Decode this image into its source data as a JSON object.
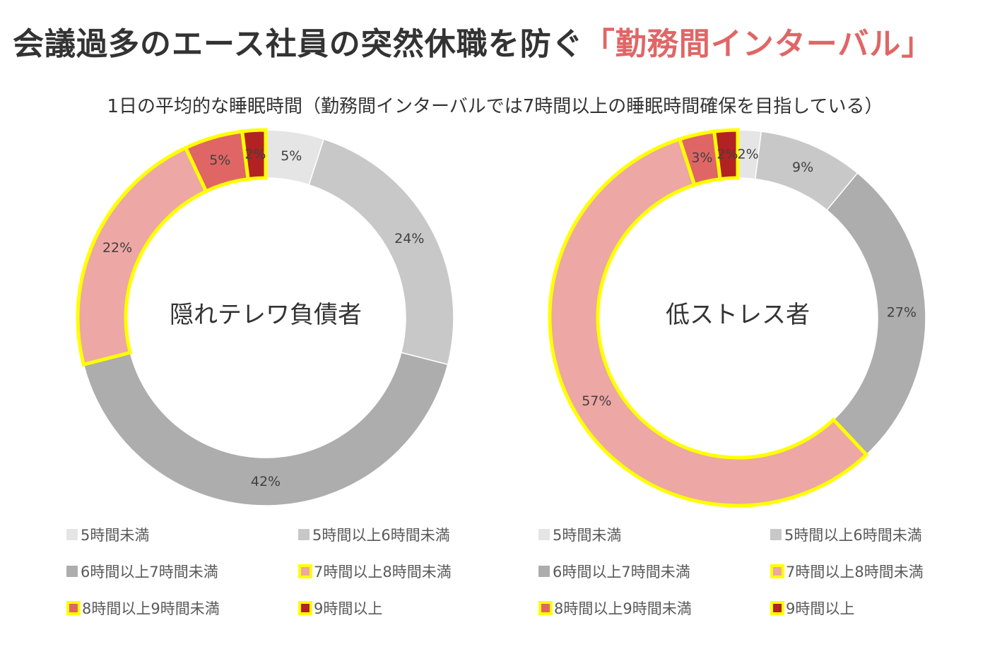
{
  "header": {
    "title_main": "会議過多のエース社員の突然休職を防ぐ",
    "title_accent": "「勤務間インターバル」",
    "accent_color": "#e06666"
  },
  "subtitle": "1日の平均的な睡眠時間（勤務間インターバルでは7時間以上の睡眠時間確保を目指している）",
  "highlight_color": "#ffff00",
  "categories": [
    {
      "label": "5時間未満",
      "color": "#e5e5e5",
      "highlight": false
    },
    {
      "label": "5時間以上6時間未満",
      "color": "#c8c8c8",
      "highlight": false
    },
    {
      "label": "6時間以上7時間未満",
      "color": "#adadad",
      "highlight": false
    },
    {
      "label": "7時間以上8時間未満",
      "color": "#eda7a5",
      "highlight": true
    },
    {
      "label": "8時間以上9時間未満",
      "color": "#e06666",
      "highlight": true
    },
    {
      "label": "9時間以上",
      "color": "#b22222",
      "highlight": true
    }
  ],
  "chart_data": [
    {
      "type": "donut",
      "center_label": "隠れテレワ負債者",
      "values": [
        5,
        24,
        42,
        22,
        5,
        2
      ],
      "data_labels": [
        "5%",
        "24%",
        "42%",
        "22%",
        "5%",
        "2%"
      ]
    },
    {
      "type": "donut",
      "center_label": "低ストレス者",
      "values": [
        2,
        9,
        27,
        57,
        3,
        2
      ],
      "data_labels": [
        "2%",
        "9%",
        "27%",
        "57%",
        "3%",
        "2%"
      ]
    }
  ]
}
